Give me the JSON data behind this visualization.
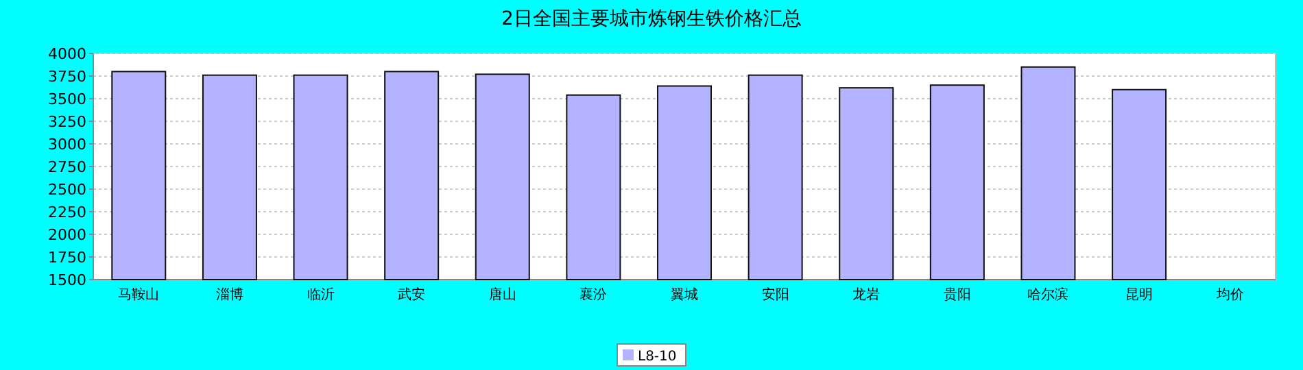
{
  "chart_data": {
    "type": "bar",
    "title": "2日全国主要城市炼钢生铁价格汇总",
    "categories": [
      "马鞍山",
      "淄博",
      "临沂",
      "武安",
      "唐山",
      "襄汾",
      "翼城",
      "安阳",
      "龙岩",
      "贵阳",
      "哈尔滨",
      "昆明",
      "均价"
    ],
    "series": [
      {
        "name": "L8-10",
        "color": "#b3b3ff",
        "values": [
          3800,
          3760,
          3760,
          3800,
          3770,
          3540,
          3640,
          3760,
          3620,
          3650,
          3850,
          3600,
          null
        ]
      }
    ],
    "ylim": [
      1500,
      4000
    ],
    "yticks": [
      1500,
      1750,
      2000,
      2250,
      2500,
      2750,
      3000,
      3250,
      3500,
      3750,
      4000
    ],
    "grid": "y",
    "legend": "bottom"
  }
}
